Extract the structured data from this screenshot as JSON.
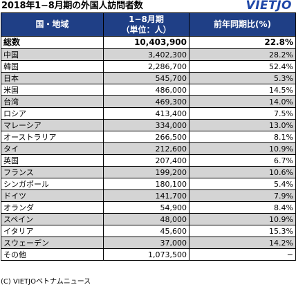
{
  "header": {
    "title": "2018年1−8月期の外国人訪問者数",
    "logo": "VIETJO"
  },
  "table": {
    "columns": {
      "region": "国・地域",
      "count_line1": "1−8月期",
      "count_line2": "（単位：人）",
      "yoy": "前年同期比(%)"
    },
    "total": {
      "name": "総数",
      "count": "10,403,900",
      "yoy": "22.8%"
    },
    "rows": [
      {
        "name": "中国",
        "count": "3,402,300",
        "yoy": "28.2%"
      },
      {
        "name": "韓国",
        "count": "2,286,700",
        "yoy": "52.4%"
      },
      {
        "name": "日本",
        "count": "545,700",
        "yoy": "5.3%"
      },
      {
        "name": "米国",
        "count": "486,000",
        "yoy": "14.5%"
      },
      {
        "name": "台湾",
        "count": "469,300",
        "yoy": "14.0%"
      },
      {
        "name": "ロシア",
        "count": "413,400",
        "yoy": "7.5%"
      },
      {
        "name": "マレーシア",
        "count": "334,000",
        "yoy": "13.0%"
      },
      {
        "name": "オーストラリア",
        "count": "266,500",
        "yoy": "8.1%"
      },
      {
        "name": "タイ",
        "count": "212,600",
        "yoy": "10.9%"
      },
      {
        "name": "英国",
        "count": "207,400",
        "yoy": "6.7%"
      },
      {
        "name": "フランス",
        "count": "199,200",
        "yoy": "10.6%"
      },
      {
        "name": "シンガポール",
        "count": "180,100",
        "yoy": "5.4%"
      },
      {
        "name": "ドイツ",
        "count": "141,700",
        "yoy": "7.9%"
      },
      {
        "name": "オランダ",
        "count": "54,900",
        "yoy": "8.4%"
      },
      {
        "name": "スペイン",
        "count": "48,000",
        "yoy": "10.9%"
      },
      {
        "name": "イタリア",
        "count": "45,600",
        "yoy": "15.3%"
      },
      {
        "name": "スウェーデン",
        "count": "37,000",
        "yoy": "14.2%"
      },
      {
        "name": "その他",
        "count": "1,073,500",
        "yoy": "−"
      }
    ]
  },
  "footer": {
    "copyright": "(C) VIETJOベトナムニュース"
  },
  "colors": {
    "header_bg": "#1f3f86",
    "shaded_row": "#d4d4d4",
    "logo": "#1f47a8"
  }
}
